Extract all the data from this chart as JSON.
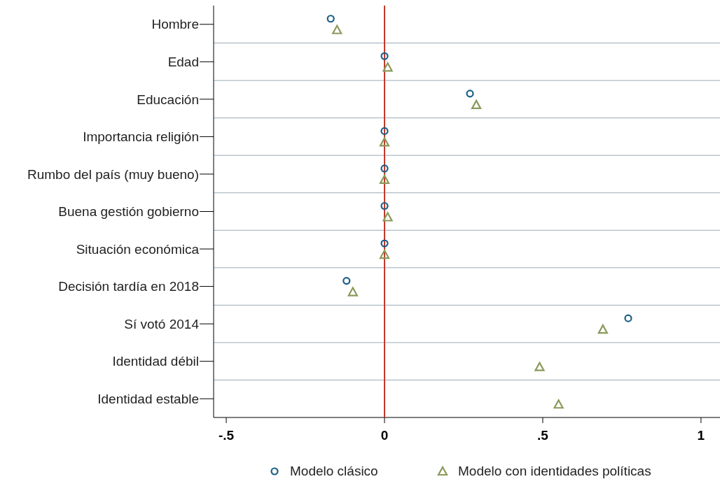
{
  "chart_data": {
    "type": "scatter",
    "orientation": "horizontal",
    "categories": [
      "Hombre",
      "Edad",
      "Educación",
      "Importancia religión",
      "Rumbo del país (muy bueno)",
      "Buena gestión gobierno",
      "Situación económica",
      "Decisión tardía en 2018",
      "Sí votó 2014",
      "Identidad débil",
      "Identidad estable"
    ],
    "series": [
      {
        "name": "Modelo clásico",
        "color": "#1b5e86",
        "marker": "circle",
        "values": [
          -0.17,
          0.0,
          0.27,
          -0.0,
          -0.0,
          0.0,
          0.0,
          -0.12,
          0.77,
          null,
          null
        ]
      },
      {
        "name": "Modelo con identidades políticas",
        "color": "#8a9a5b",
        "marker": "triangle",
        "values": [
          -0.15,
          0.01,
          0.29,
          -0.0,
          0.0,
          0.01,
          0.0,
          -0.1,
          0.69,
          0.49,
          0.55
        ]
      }
    ],
    "xlim": [
      -0.54,
      1.06
    ],
    "xticks": [
      {
        "value": -0.5,
        "label": "-.5"
      },
      0,
      {
        "value": 0.5,
        "label": ".5"
      },
      1
    ],
    "ref_lines": [
      {
        "axis": "x",
        "value": 0,
        "color": "#c0392b"
      }
    ],
    "grid": "y",
    "legend": "bottom"
  }
}
